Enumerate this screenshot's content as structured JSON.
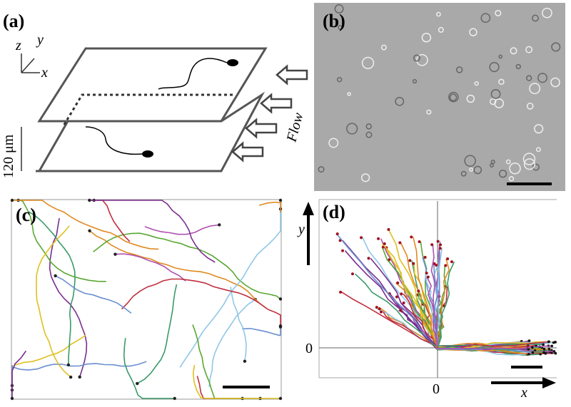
{
  "panels": {
    "a": {
      "label": "(a)",
      "axis_z": "z",
      "axis_y": "y",
      "axis_x": "x",
      "scale": "120 μm",
      "flow": "Flow"
    },
    "b": {
      "label": "(b)"
    },
    "c": {
      "label": "(c)"
    },
    "d": {
      "label": "(d)",
      "y_axis": "y",
      "y_zero": "0",
      "x_zero": "0",
      "x_axis": "x"
    }
  }
}
